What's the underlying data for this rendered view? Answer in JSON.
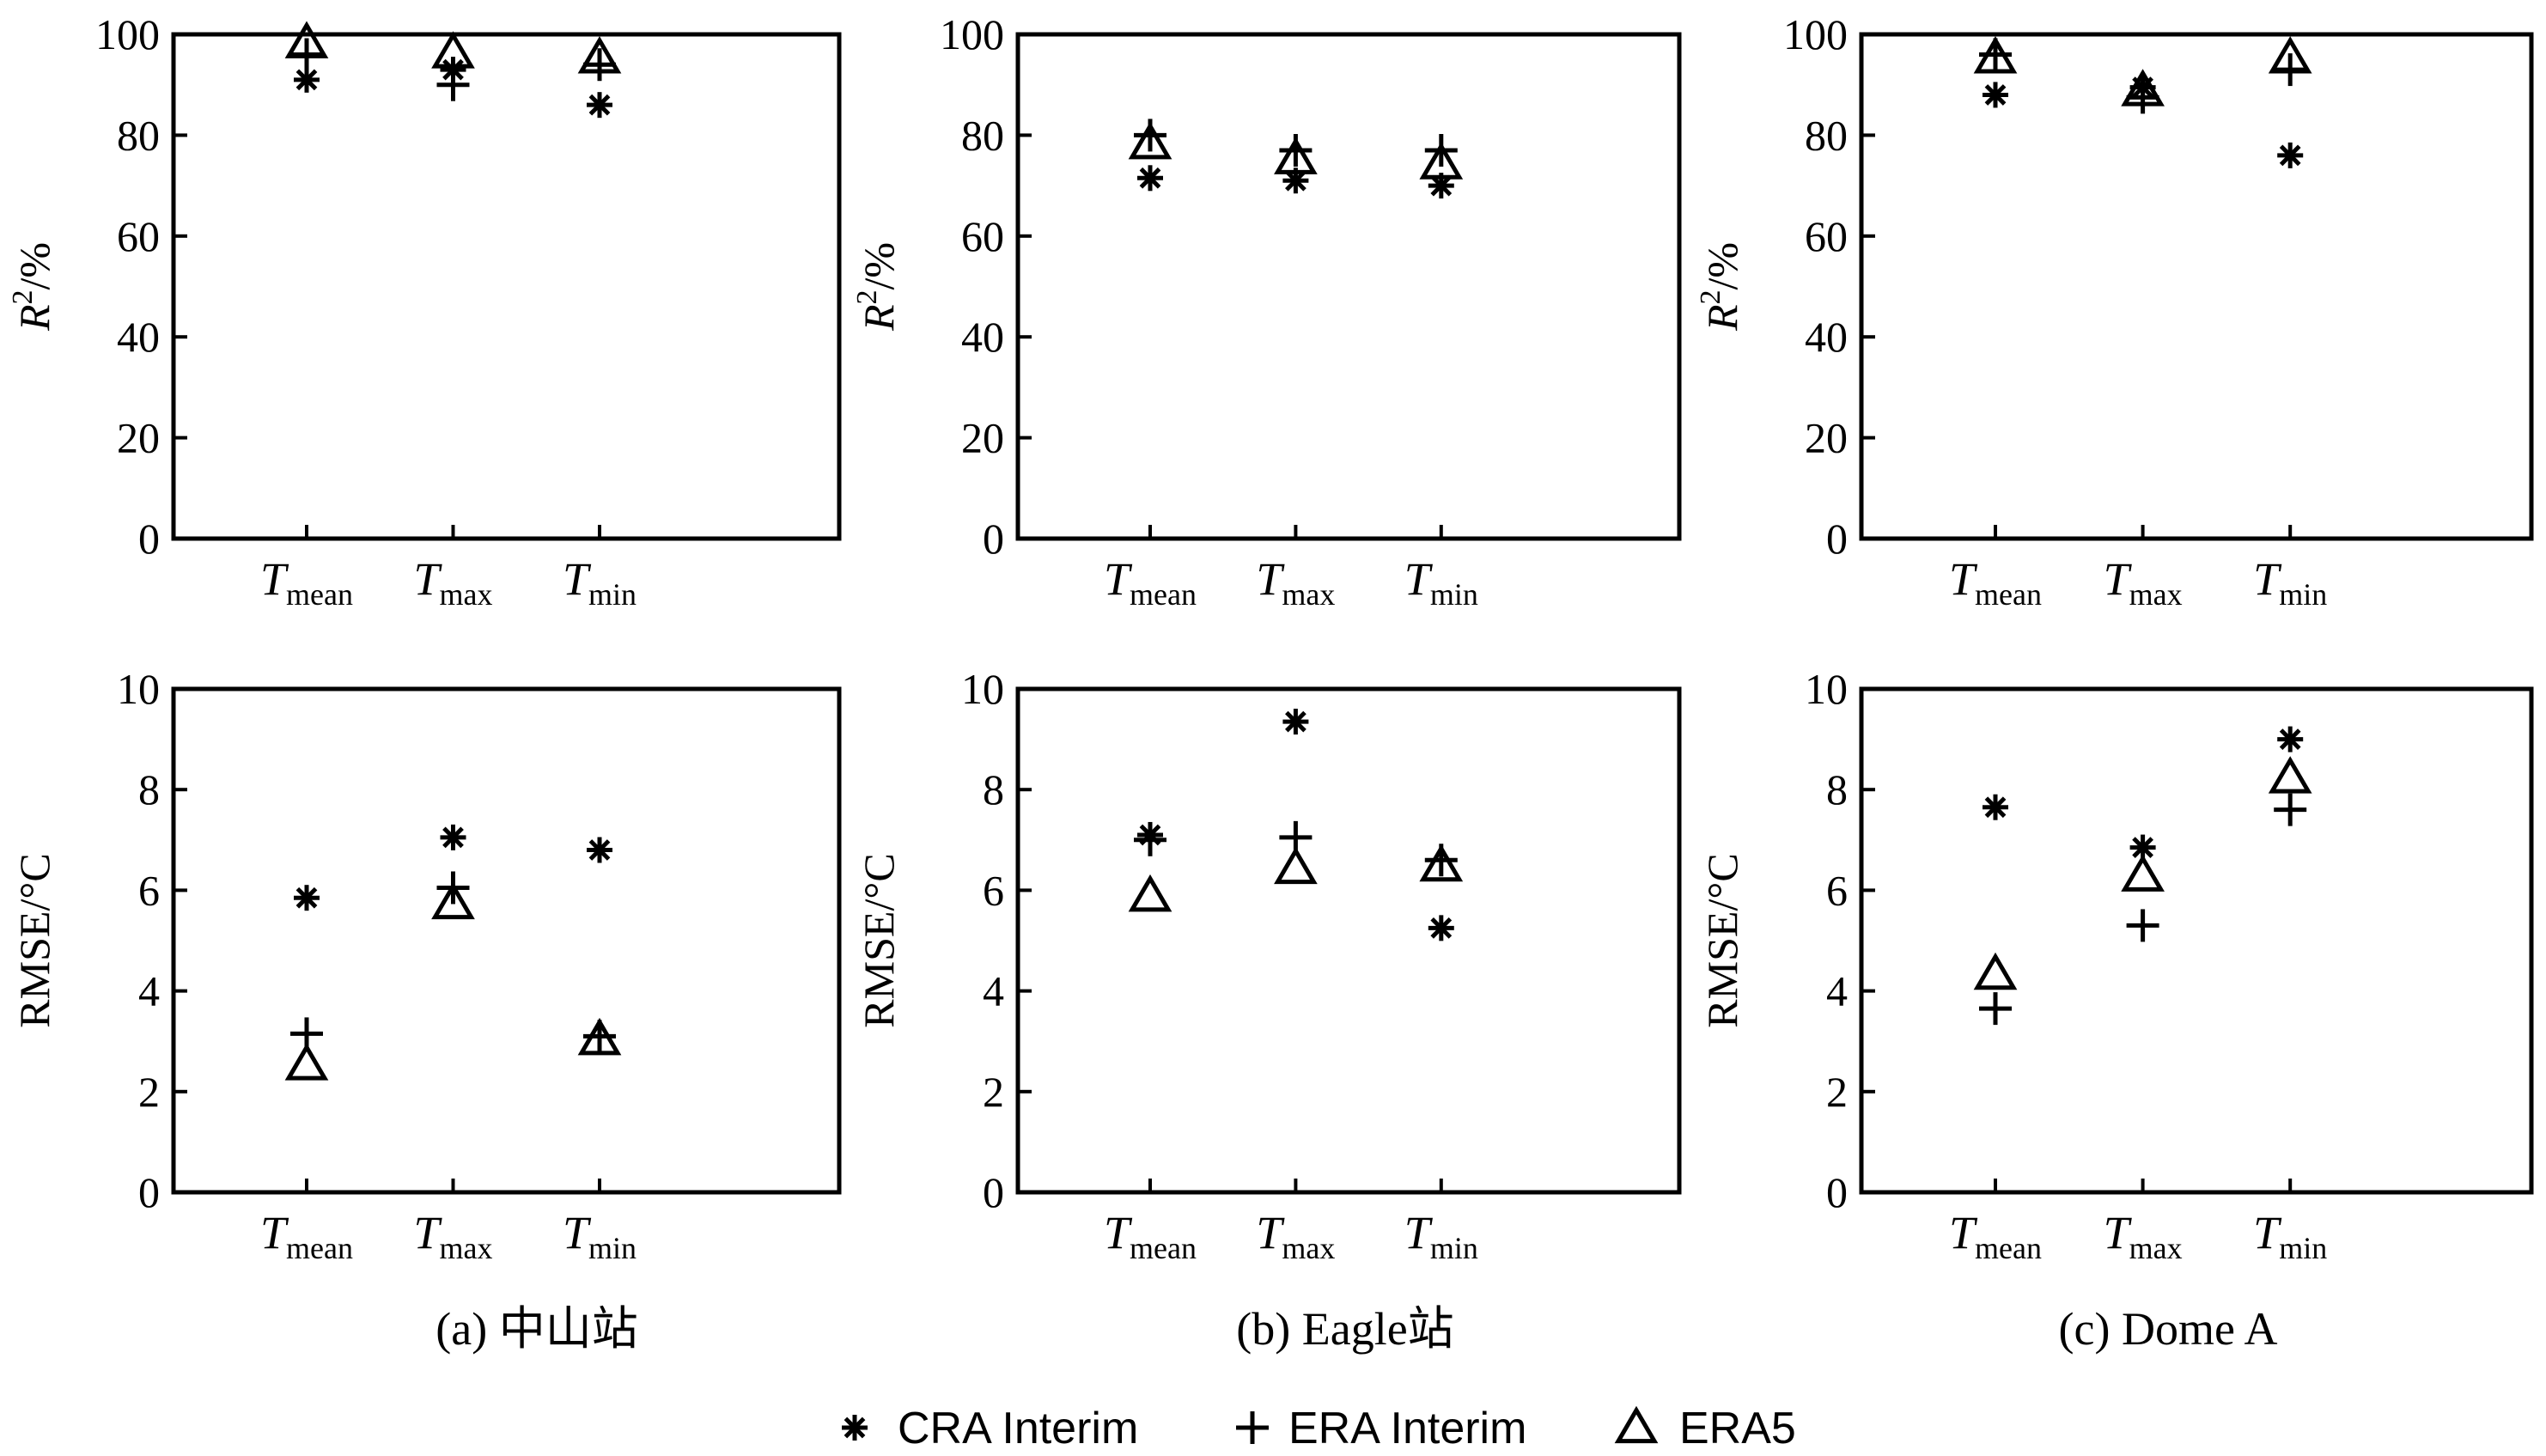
{
  "legend": {
    "items": [
      {
        "marker": "asterisk",
        "label": "CRA Interim"
      },
      {
        "marker": "plus",
        "label": "ERA Interim"
      },
      {
        "marker": "triangle",
        "label": "ERA5"
      }
    ]
  },
  "panels": [
    {
      "caption": "(a) 中山站"
    },
    {
      "caption": "(b) Eagle站"
    },
    {
      "caption": "(c) Dome A"
    }
  ],
  "chart_data": [
    {
      "type": "scatter",
      "panel": 0,
      "metric": "r2",
      "ylabel": {
        "main": "R",
        "sup": "2",
        "rest": "/%"
      },
      "ylim": [
        0,
        100
      ],
      "yticks": [
        "0",
        "20",
        "40",
        "60",
        "80",
        "100"
      ],
      "categories": [
        {
          "main": "T",
          "sub": "mean"
        },
        {
          "main": "T",
          "sub": "max"
        },
        {
          "main": "T",
          "sub": "min"
        }
      ],
      "series": [
        {
          "name": "CRA Interim",
          "values": [
            91,
            93,
            86
          ]
        },
        {
          "name": "ERA Interim",
          "values": [
            96,
            90,
            94
          ]
        },
        {
          "name": "ERA5",
          "values": [
            98,
            96,
            95
          ]
        }
      ]
    },
    {
      "type": "scatter",
      "panel": 1,
      "metric": "r2",
      "ylabel": {
        "main": "R",
        "sup": "2",
        "rest": "/%"
      },
      "ylim": [
        0,
        100
      ],
      "yticks": [
        "0",
        "20",
        "40",
        "60",
        "80",
        "100"
      ],
      "categories": [
        {
          "main": "T",
          "sub": "mean"
        },
        {
          "main": "T",
          "sub": "max"
        },
        {
          "main": "T",
          "sub": "min"
        }
      ],
      "series": [
        {
          "name": "CRA Interim",
          "values": [
            71.5,
            71,
            70
          ]
        },
        {
          "name": "ERA Interim",
          "values": [
            80,
            77,
            77
          ]
        },
        {
          "name": "ERA5",
          "values": [
            78,
            75,
            74
          ]
        }
      ]
    },
    {
      "type": "scatter",
      "panel": 2,
      "metric": "r2",
      "ylabel": {
        "main": "R",
        "sup": "2",
        "rest": "/%"
      },
      "ylim": [
        0,
        100
      ],
      "yticks": [
        "0",
        "20",
        "40",
        "60",
        "80",
        "100"
      ],
      "categories": [
        {
          "main": "T",
          "sub": "mean"
        },
        {
          "main": "T",
          "sub": "max"
        },
        {
          "main": "T",
          "sub": "min"
        }
      ],
      "series": [
        {
          "name": "CRA Interim",
          "values": [
            88,
            89.5,
            76
          ]
        },
        {
          "name": "ERA Interim",
          "values": [
            96,
            87.5,
            93
          ]
        },
        {
          "name": "ERA5",
          "values": [
            95,
            88.5,
            95
          ]
        }
      ]
    },
    {
      "type": "scatter",
      "panel": 0,
      "metric": "rmse",
      "ylabel": {
        "main": "RMSE/°C",
        "sup": "",
        "rest": ""
      },
      "ylim": [
        0,
        10
      ],
      "yticks": [
        "0",
        "2",
        "4",
        "6",
        "8",
        "10"
      ],
      "categories": [
        {
          "main": "T",
          "sub": "mean"
        },
        {
          "main": "T",
          "sub": "max"
        },
        {
          "main": "T",
          "sub": "min"
        }
      ],
      "series": [
        {
          "name": "CRA Interim",
          "values": [
            5.85,
            7.05,
            6.8
          ]
        },
        {
          "name": "ERA Interim",
          "values": [
            3.15,
            6.05,
            3.1
          ]
        },
        {
          "name": "ERA5",
          "values": [
            2.5,
            5.7,
            3.0
          ]
        }
      ]
    },
    {
      "type": "scatter",
      "panel": 1,
      "metric": "rmse",
      "ylabel": {
        "main": "RMSE/°C",
        "sup": "",
        "rest": ""
      },
      "ylim": [
        0,
        10
      ],
      "yticks": [
        "0",
        "2",
        "4",
        "6",
        "8",
        "10"
      ],
      "categories": [
        {
          "main": "T",
          "sub": "mean"
        },
        {
          "main": "T",
          "sub": "max"
        },
        {
          "main": "T",
          "sub": "min"
        }
      ],
      "series": [
        {
          "name": "CRA Interim",
          "values": [
            7.1,
            9.35,
            5.25
          ]
        },
        {
          "name": "ERA Interim",
          "values": [
            7.0,
            7.05,
            6.6
          ]
        },
        {
          "name": "ERA5",
          "values": [
            5.85,
            6.4,
            6.45
          ]
        }
      ]
    },
    {
      "type": "scatter",
      "panel": 2,
      "metric": "rmse",
      "ylabel": {
        "main": "RMSE/°C",
        "sup": "",
        "rest": ""
      },
      "ylim": [
        0,
        10
      ],
      "yticks": [
        "0",
        "2",
        "4",
        "6",
        "8",
        "10"
      ],
      "categories": [
        {
          "main": "T",
          "sub": "mean"
        },
        {
          "main": "T",
          "sub": "max"
        },
        {
          "main": "T",
          "sub": "min"
        }
      ],
      "series": [
        {
          "name": "CRA Interim",
          "values": [
            7.65,
            6.85,
            9.0
          ]
        },
        {
          "name": "ERA Interim",
          "values": [
            3.65,
            5.3,
            7.6
          ]
        },
        {
          "name": "ERA5",
          "values": [
            4.3,
            6.25,
            8.2
          ]
        }
      ]
    }
  ]
}
